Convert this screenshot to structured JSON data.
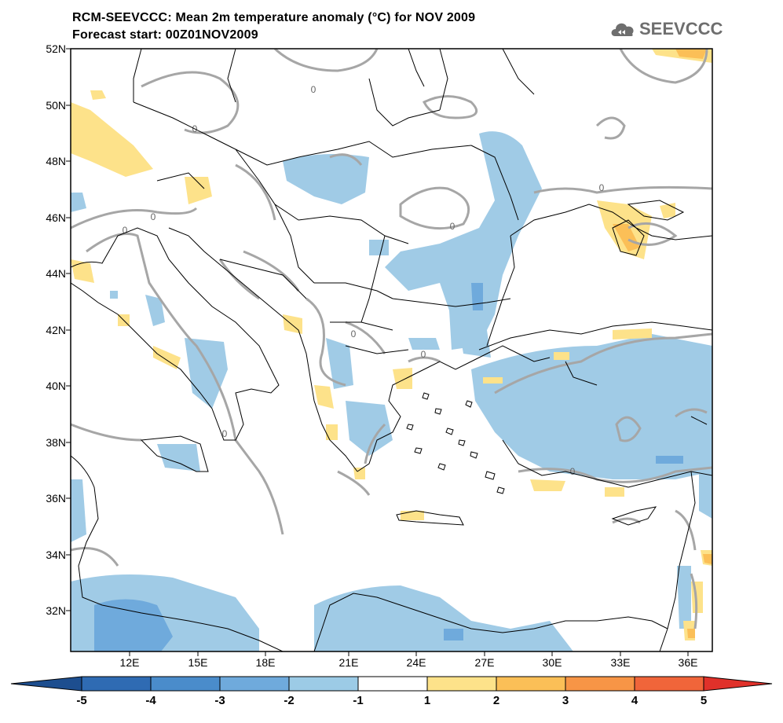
{
  "header": {
    "title_line1": "RCM-SEEVCCC: Mean 2m temperature anomaly (°C) for NOV 2009",
    "title_line2": "Forecast start: 00Z01NOV2009",
    "logo_text": "SEEVCCC"
  },
  "axes": {
    "lat_labels": [
      "52N",
      "50N",
      "48N",
      "46N",
      "44N",
      "42N",
      "40N",
      "38N",
      "36N",
      "34N",
      "32N"
    ],
    "lon_labels": [
      "12E",
      "15E",
      "18E",
      "21E",
      "24E",
      "27E",
      "30E",
      "33E",
      "36E"
    ]
  },
  "contour_label": "0",
  "colorbar": {
    "labels": [
      "-5",
      "-4",
      "-3",
      "-2",
      "-1",
      "1",
      "2",
      "3",
      "4",
      "5"
    ],
    "colors": {
      "below_min": "#1d4e8f",
      "bins": [
        "#2f6bb3",
        "#4a8ccb",
        "#6faadc",
        "#9ccbe6",
        "#ffffff",
        "#fde28a",
        "#fbbf57",
        "#f79546",
        "#f0653a"
      ],
      "above_max": "#e0312a"
    }
  },
  "palette": {
    "cool1": "#a0cbe6",
    "cool2": "#6faadc",
    "warm1": "#fde28a",
    "warm2": "#fbbf57",
    "warm3": "#f79546",
    "contour": "#a6a6a6",
    "coast": "#000000"
  }
}
